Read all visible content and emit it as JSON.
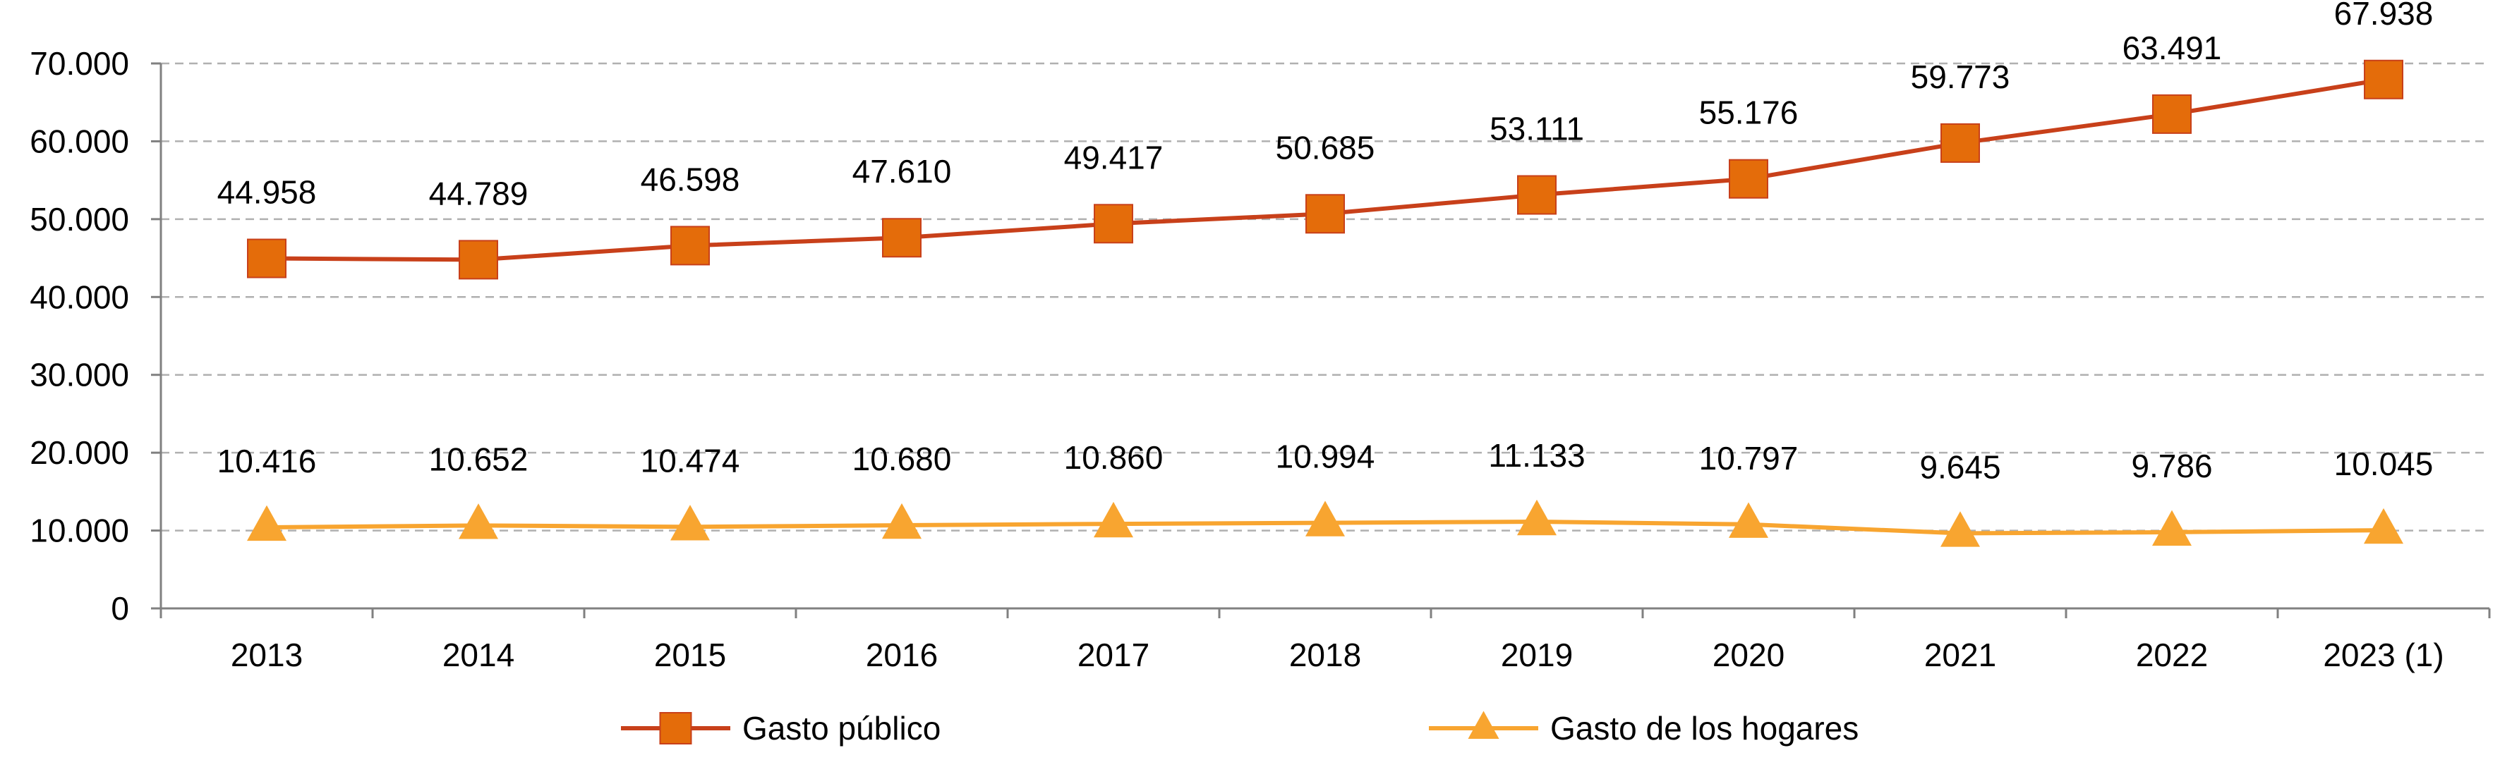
{
  "chart_data": {
    "type": "line",
    "categories": [
      "2013",
      "2014",
      "2015",
      "2016",
      "2017",
      "2018",
      "2019",
      "2020",
      "2021",
      "2022",
      "2023 (1)"
    ],
    "y_ticks": [
      "0",
      "10.000",
      "20.000",
      "30.000",
      "40.000",
      "50.000",
      "60.000",
      "70.000"
    ],
    "ylim": [
      0,
      70000
    ],
    "grid": true,
    "legend_position": "bottom",
    "series": [
      {
        "name": "Gasto público",
        "values": [
          44958,
          44789,
          46598,
          47610,
          49417,
          50685,
          53111,
          55176,
          59773,
          63491,
          67938
        ],
        "labels": [
          "44.958",
          "44.789",
          "46.598",
          "47.610",
          "49.417",
          "50.685",
          "53.111",
          "55.176",
          "59.773",
          "63.491",
          "67.938"
        ],
        "line_color": "#C8401A",
        "marker_color": "#E46C0A",
        "marker": "square"
      },
      {
        "name": "Gasto de los hogares",
        "values": [
          10416,
          10652,
          10474,
          10680,
          10860,
          10994,
          11133,
          10797,
          9645,
          9786,
          10045
        ],
        "labels": [
          "10.416",
          "10.652",
          "10.474",
          "10.680",
          "10.860",
          "10.994",
          "11.133",
          "10.797",
          "9.645",
          "9.786",
          "10.045"
        ],
        "line_color": "#F8A530",
        "marker_color": "#F8A530",
        "marker": "triangle"
      }
    ]
  }
}
